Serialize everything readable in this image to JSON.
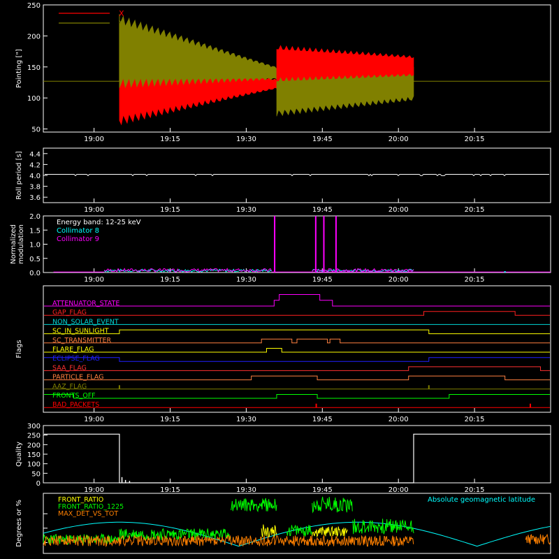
{
  "chart_data": [
    {
      "id": "pointing",
      "type": "line",
      "ylabel": "Pointing [\"]",
      "ylim": [
        45,
        250
      ],
      "yticks": [
        50,
        100,
        150,
        200,
        250
      ],
      "x_time_range": [
        "18:50",
        "20:30"
      ],
      "xticks": [
        "19:00",
        "19:15",
        "19:30",
        "19:45",
        "20:00",
        "20:15"
      ],
      "legend": {
        "placement": "top-left",
        "entries": [
          {
            "name": "X",
            "color": "#ff0000"
          },
          {
            "name": "Y",
            "color": "#808000"
          }
        ]
      },
      "segments": [
        {
          "start": "19:05",
          "end": "19:36",
          "x_range_start": [
            55,
            170
          ],
          "x_range_end": [
            115,
            130
          ],
          "y_range_start": [
            115,
            235
          ],
          "y_range_end": [
            130,
            150
          ]
        },
        {
          "start": "19:36",
          "end": "20:03",
          "x_range_start": [
            125,
            185
          ],
          "x_range_end": [
            135,
            168
          ],
          "y_range_start": [
            70,
            145
          ],
          "y_range_end": [
            95,
            150
          ]
        }
      ],
      "baseline": 127
    },
    {
      "id": "roll",
      "type": "line",
      "ylabel": "Roll period [s]",
      "ylim": [
        3.5,
        4.5
      ],
      "yticks": [
        3.6,
        3.8,
        4.0,
        4.2,
        4.4
      ],
      "x_time_range": [
        "18:50",
        "20:30"
      ],
      "xticks": [
        "19:00",
        "19:15",
        "19:30",
        "19:45",
        "20:00",
        "20:15"
      ],
      "value": 4.02
    },
    {
      "id": "modulation",
      "type": "line",
      "ylabel": "Normalized modulation",
      "ylim": [
        0,
        2
      ],
      "yticks": [
        0.0,
        0.5,
        1.0,
        1.5,
        2.0
      ],
      "x_time_range": [
        "18:50",
        "20:30"
      ],
      "xticks": [
        "19:00",
        "19:15",
        "19:30",
        "19:45",
        "20:00",
        "20:15"
      ],
      "annotation": "Energy band: 12-25 keV",
      "legend": {
        "placement": "top-left",
        "entries": [
          {
            "name": "Collimator 8",
            "color": "#00ffff"
          },
          {
            "name": "Collimator 9",
            "color": "#ff00ff"
          }
        ]
      },
      "spikes": [
        {
          "t": "19:35.6",
          "value": 2.0
        },
        {
          "t": "19:43.7",
          "value": 2.0
        },
        {
          "t": "19:45.3",
          "value": 2.0
        },
        {
          "t": "19:47.7",
          "value": 2.0
        }
      ]
    },
    {
      "id": "flags",
      "type": "line",
      "ylabel": "Flags",
      "x_time_range": [
        "18:50",
        "20:30"
      ],
      "xticks": [
        "19:00",
        "19:15",
        "19:30",
        "19:45",
        "20:00",
        "20:15"
      ],
      "flags": [
        {
          "name": "ATTENUATOR_STATE",
          "color": "#ff00ff",
          "steps": [
            [
              "18:50",
              0
            ],
            [
              "19:35.5",
              1
            ],
            [
              "19:36.5",
              2
            ],
            [
              "19:44.5",
              1
            ],
            [
              "19:47",
              0
            ]
          ]
        },
        {
          "name": "GAP_FLAG",
          "color": "#ff2020",
          "steps": [
            [
              "18:50",
              0
            ],
            [
              "20:05",
              1
            ],
            [
              "20:23",
              0
            ]
          ]
        },
        {
          "name": "NON_SOLAR_EVENT",
          "color": "#00d8d8",
          "steps": [
            [
              "18:50",
              0
            ]
          ]
        },
        {
          "name": "SC_IN_SUNLIGHT",
          "color": "#ffff00",
          "steps": [
            [
              "18:50",
              0
            ],
            [
              "19:05",
              1
            ],
            [
              "20:06",
              0
            ]
          ]
        },
        {
          "name": "SC_TRANSMITTER",
          "color": "#ff8040",
          "steps": [
            [
              "18:50",
              0
            ],
            [
              "19:33",
              1
            ],
            [
              "19:39",
              0
            ],
            [
              "19:40",
              1
            ],
            [
              "19:46",
              0
            ],
            [
              "19:46.5",
              1
            ],
            [
              "19:48.5",
              0
            ]
          ]
        },
        {
          "name": "FLARE_FLAG",
          "color": "#ffff00",
          "steps": [
            [
              "18:50",
              0
            ],
            [
              "19:34",
              1
            ],
            [
              "19:37",
              0
            ]
          ]
        },
        {
          "name": "ECLIPSE_FLAG",
          "color": "#2020ff",
          "steps": [
            [
              "18:50",
              1
            ],
            [
              "19:05",
              0
            ],
            [
              "20:06",
              1
            ]
          ]
        },
        {
          "name": "SAA_FLAG",
          "color": "#ff3030",
          "steps": [
            [
              "18:50",
              0
            ],
            [
              "20:02",
              1
            ],
            [
              "20:28",
              0
            ]
          ]
        },
        {
          "name": "PARTICLE_FLAG",
          "color": "#ff8040",
          "steps": [
            [
              "18:50",
              0
            ],
            [
              "19:31",
              1
            ],
            [
              "19:44",
              0
            ],
            [
              "20:02",
              1
            ],
            [
              "20:21",
              0
            ]
          ]
        },
        {
          "name": "AAZ_FLAG",
          "color": "#808000",
          "steps": [
            [
              "18:50",
              0
            ]
          ],
          "blips": [
            "19:05",
            "20:06"
          ]
        },
        {
          "name": "FRONTS_OFF",
          "color": "#00ff00",
          "steps": [
            [
              "18:50",
              1
            ],
            [
              "18:56",
              0
            ],
            [
              "19:36",
              1
            ],
            [
              "19:44",
              0
            ],
            [
              "20:10",
              1
            ]
          ]
        },
        {
          "name": "BAD_PACKETS",
          "color": "#ff0000",
          "steps": [
            [
              "18:50",
              0
            ]
          ],
          "blips": [
            "19:43.8",
            "20:26"
          ]
        }
      ]
    },
    {
      "id": "quality",
      "type": "line",
      "ylabel": "Quality",
      "ylim": [
        0,
        300
      ],
      "yticks": [
        0,
        50,
        100,
        150,
        200,
        250,
        300
      ],
      "x_time_range": [
        "18:50",
        "20:30"
      ],
      "xticks": [
        "19:00",
        "19:15",
        "19:30",
        "19:45",
        "20:00",
        "20:15"
      ],
      "segments": [
        {
          "start": "18:50",
          "end": "19:05",
          "value": 255
        },
        {
          "start": "19:05",
          "end": "20:03",
          "value": 0
        },
        {
          "start": "20:03",
          "end": "20:30",
          "value": 255
        }
      ],
      "blips": [
        [
          "19:05.5",
          30
        ],
        [
          "19:06.2",
          15
        ],
        [
          "19:07",
          10
        ]
      ]
    },
    {
      "id": "ratios",
      "type": "line",
      "ylabel": "Degrees or %",
      "x_time_range": [
        "18:50",
        "20:30"
      ],
      "legend": {
        "placement": "top-left",
        "entries": [
          {
            "name": "FRONT_RATIO",
            "color": "#ffff00"
          },
          {
            "name": "FRONT_RATIO_1225",
            "color": "#00ff00"
          },
          {
            "name": "MAX_DET_VS_TOT",
            "color": "#ff8000"
          }
        ]
      },
      "annotation": "Absolute geomagnetic latitude",
      "annotation_color": "#00ffff"
    }
  ]
}
